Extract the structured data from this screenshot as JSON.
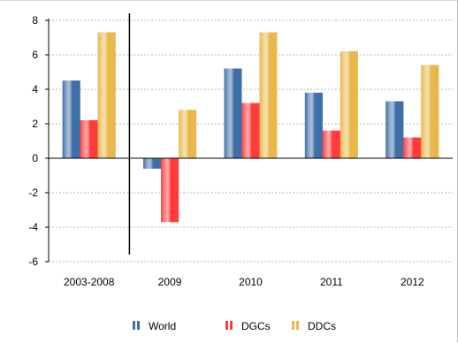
{
  "chart_data": {
    "type": "bar",
    "categories": [
      "2003-2008",
      "2009",
      "2010",
      "2011",
      "2012"
    ],
    "series": [
      {
        "name": "World",
        "values": [
          4.5,
          -0.6,
          5.2,
          3.8,
          3.3
        ],
        "color": "#3f6fa8"
      },
      {
        "name": "DGCs",
        "values": [
          2.2,
          -3.7,
          3.2,
          1.6,
          1.2
        ],
        "color": "#ff3b3b"
      },
      {
        "name": "DDCs",
        "values": [
          7.3,
          2.8,
          7.3,
          6.2,
          5.4
        ],
        "color": "#e8b84a"
      }
    ],
    "y_ticks": [
      "8",
      "6",
      "4",
      "2",
      "0",
      "-2",
      "-4",
      "-6"
    ],
    "ylim": [
      -6,
      8
    ],
    "grid": "horizontal dashed",
    "legend_position": "bottom",
    "separator_after_category": "2003-2008"
  }
}
